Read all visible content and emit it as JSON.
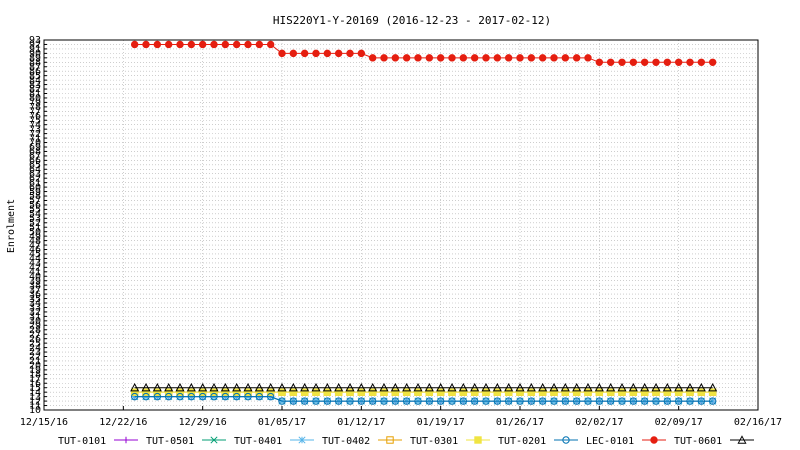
{
  "chart_data": {
    "type": "line",
    "title": "HIS220Y1-Y-20169 (2016-12-23 - 2017-02-12)",
    "xlabel": "",
    "ylabel": "Enrolment",
    "x_tick_labels": [
      "12/15/16",
      "12/22/16",
      "12/29/16",
      "01/05/17",
      "01/12/17",
      "01/19/17",
      "01/26/17",
      "02/02/17",
      "02/09/17",
      "02/16/17"
    ],
    "x_range_days": [
      0,
      63
    ],
    "ylim": [
      10,
      93
    ],
    "y_tick_step": 1,
    "grid": true,
    "legend_position": "bottom",
    "dates": [
      "2016-12-23",
      "2016-12-24",
      "2016-12-25",
      "2016-12-26",
      "2016-12-27",
      "2016-12-28",
      "2016-12-29",
      "2016-12-30",
      "2016-12-31",
      "2017-01-01",
      "2017-01-02",
      "2017-01-03",
      "2017-01-04",
      "2017-01-05",
      "2017-01-06",
      "2017-01-07",
      "2017-01-08",
      "2017-01-09",
      "2017-01-10",
      "2017-01-11",
      "2017-01-12",
      "2017-01-13",
      "2017-01-14",
      "2017-01-15",
      "2017-01-16",
      "2017-01-17",
      "2017-01-18",
      "2017-01-19",
      "2017-01-20",
      "2017-01-21",
      "2017-01-22",
      "2017-01-23",
      "2017-01-24",
      "2017-01-25",
      "2017-01-26",
      "2017-01-27",
      "2017-01-28",
      "2017-01-29",
      "2017-01-30",
      "2017-01-31",
      "2017-02-01",
      "2017-02-02",
      "2017-02-03",
      "2017-02-04",
      "2017-02-05",
      "2017-02-06",
      "2017-02-07",
      "2017-02-08",
      "2017-02-09",
      "2017-02-10",
      "2017-02-11",
      "2017-02-12"
    ],
    "series": [
      {
        "name": "TUT-0101",
        "color": "#9400d3",
        "marker": "plus",
        "values": [
          13,
          13,
          13,
          13,
          13,
          13,
          13,
          13,
          13,
          13,
          13,
          13,
          13,
          12,
          12,
          12,
          12,
          12,
          12,
          12,
          12,
          12,
          12,
          12,
          12,
          12,
          12,
          12,
          12,
          12,
          12,
          12,
          12,
          12,
          12,
          12,
          12,
          12,
          12,
          12,
          12,
          12,
          12,
          12,
          12,
          12,
          12,
          12,
          12,
          12,
          12,
          12
        ]
      },
      {
        "name": "TUT-0501",
        "color": "#009e73",
        "marker": "x",
        "values": [
          13,
          13,
          13,
          13,
          13,
          13,
          13,
          13,
          13,
          13,
          13,
          13,
          13,
          12,
          12,
          12,
          12,
          12,
          12,
          12,
          12,
          12,
          12,
          12,
          12,
          12,
          12,
          12,
          12,
          12,
          12,
          12,
          12,
          12,
          12,
          12,
          12,
          12,
          12,
          12,
          12,
          12,
          12,
          12,
          12,
          12,
          12,
          12,
          12,
          12,
          12,
          12
        ]
      },
      {
        "name": "TUT-0401",
        "color": "#56b4e9",
        "marker": "star",
        "values": [
          13,
          13,
          13,
          13,
          13,
          13,
          13,
          13,
          13,
          13,
          13,
          13,
          13,
          12,
          12,
          12,
          12,
          12,
          12,
          12,
          12,
          12,
          12,
          12,
          12,
          12,
          12,
          12,
          12,
          12,
          12,
          12,
          12,
          12,
          12,
          12,
          12,
          12,
          12,
          12,
          12,
          12,
          12,
          12,
          12,
          12,
          12,
          12,
          12,
          12,
          12,
          12
        ]
      },
      {
        "name": "TUT-0402",
        "color": "#e69f00",
        "marker": "square",
        "values": [
          14,
          14,
          14,
          14,
          14,
          14,
          14,
          14,
          14,
          14,
          14,
          14,
          14,
          14,
          14,
          14,
          14,
          14,
          14,
          14,
          14,
          14,
          14,
          14,
          14,
          14,
          14,
          14,
          14,
          14,
          14,
          14,
          14,
          14,
          14,
          14,
          14,
          14,
          14,
          14,
          14,
          14,
          14,
          14,
          14,
          14,
          14,
          14,
          14,
          14,
          14,
          14
        ]
      },
      {
        "name": "TUT-0301",
        "color": "#f0e442",
        "marker": "filled-square",
        "values": [
          14,
          14,
          14,
          14,
          14,
          14,
          14,
          14,
          14,
          14,
          14,
          14,
          14,
          14,
          14,
          14,
          14,
          14,
          14,
          14,
          14,
          14,
          14,
          14,
          14,
          14,
          14,
          14,
          14,
          14,
          14,
          14,
          14,
          14,
          14,
          14,
          14,
          14,
          14,
          14,
          14,
          14,
          14,
          14,
          14,
          14,
          14,
          14,
          14,
          14,
          14,
          14
        ]
      },
      {
        "name": "TUT-0201",
        "color": "#0072b2",
        "marker": "circle",
        "values": [
          13,
          13,
          13,
          13,
          13,
          13,
          13,
          13,
          13,
          13,
          13,
          13,
          13,
          12,
          12,
          12,
          12,
          12,
          12,
          12,
          12,
          12,
          12,
          12,
          12,
          12,
          12,
          12,
          12,
          12,
          12,
          12,
          12,
          12,
          12,
          12,
          12,
          12,
          12,
          12,
          12,
          12,
          12,
          12,
          12,
          12,
          12,
          12,
          12,
          12,
          12,
          12
        ]
      },
      {
        "name": "LEC-0101",
        "color": "#e51e10",
        "marker": "filled-circle",
        "values": [
          92,
          92,
          92,
          92,
          92,
          92,
          92,
          92,
          92,
          92,
          92,
          92,
          92,
          90,
          90,
          90,
          90,
          90,
          90,
          90,
          90,
          89,
          89,
          89,
          89,
          89,
          89,
          89,
          89,
          89,
          89,
          89,
          89,
          89,
          89,
          89,
          89,
          89,
          89,
          89,
          89,
          88,
          88,
          88,
          88,
          88,
          88,
          88,
          88,
          88,
          88,
          88
        ]
      },
      {
        "name": "TUT-0601",
        "color": "#000000",
        "marker": "triangle",
        "values": [
          15,
          15,
          15,
          15,
          15,
          15,
          15,
          15,
          15,
          15,
          15,
          15,
          15,
          15,
          15,
          15,
          15,
          15,
          15,
          15,
          15,
          15,
          15,
          15,
          15,
          15,
          15,
          15,
          15,
          15,
          15,
          15,
          15,
          15,
          15,
          15,
          15,
          15,
          15,
          15,
          15,
          15,
          15,
          15,
          15,
          15,
          15,
          15,
          15,
          15,
          15,
          15
        ]
      }
    ]
  }
}
